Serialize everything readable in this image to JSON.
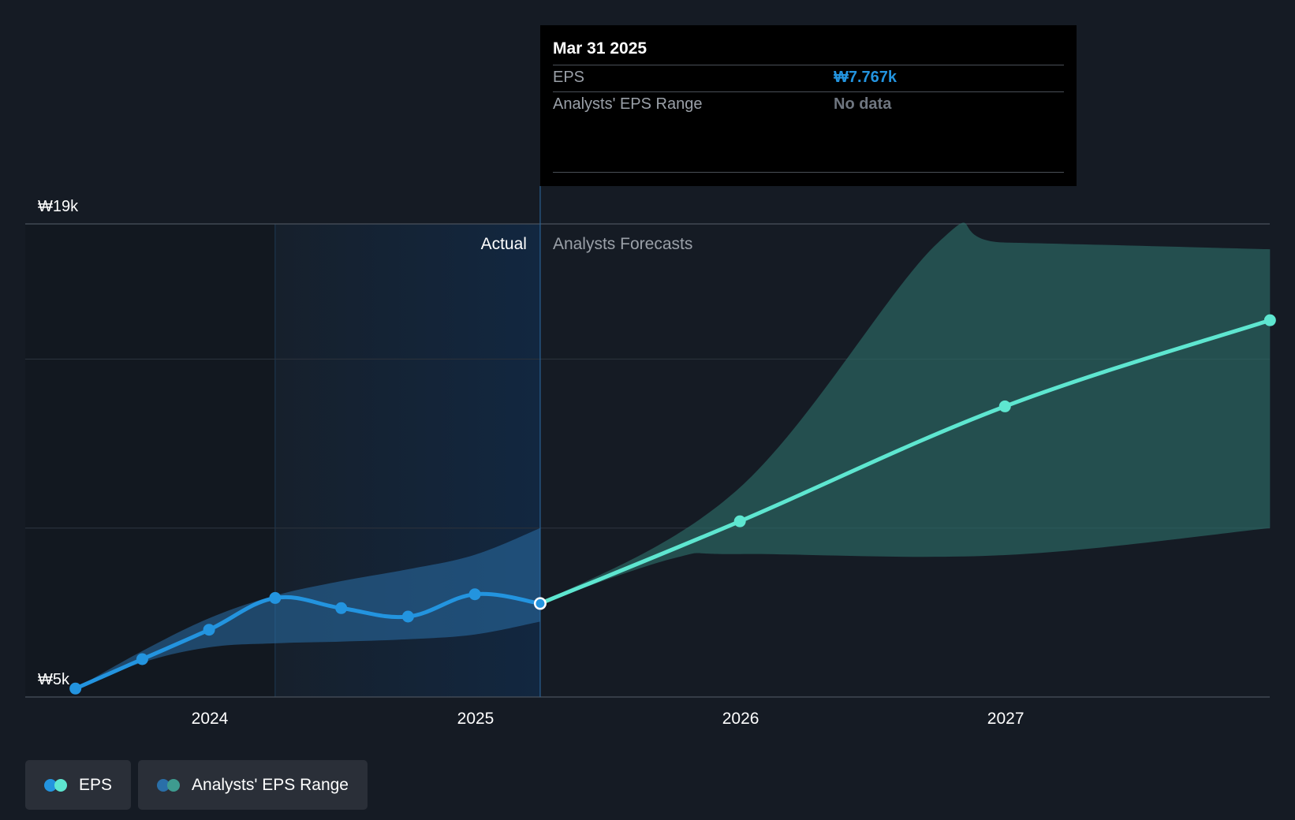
{
  "chart_data": {
    "type": "line",
    "y_axis": {
      "top_label": "₩19k",
      "bottom_label": "₩5k",
      "min": 5000,
      "max": 19000,
      "gridlines": [
        15000,
        10000
      ]
    },
    "x_axis": {
      "ticks": [
        "2024",
        "2025",
        "2026",
        "2027"
      ]
    },
    "regions": {
      "actual_label": "Actual",
      "forecast_label": "Analysts Forecasts"
    },
    "series": [
      {
        "name": "EPS",
        "kind": "actual",
        "color": "#2394df",
        "points": [
          {
            "x": "2023-06-30",
            "y": 5250
          },
          {
            "x": "2023-09-30",
            "y": 6120
          },
          {
            "x": "2023-12-31",
            "y": 6990
          },
          {
            "x": "2024-03-31",
            "y": 7930
          },
          {
            "x": "2024-06-30",
            "y": 7630
          },
          {
            "x": "2024-09-30",
            "y": 7380
          },
          {
            "x": "2024-12-31",
            "y": 8040
          },
          {
            "x": "2025-03-31",
            "y": 7767
          }
        ]
      },
      {
        "name": "EPS",
        "kind": "forecast",
        "color": "#5ee6d0",
        "points": [
          {
            "x": "2025-03-31",
            "y": 7767
          },
          {
            "x": "2025-12-31",
            "y": 10200
          },
          {
            "x": "2026-12-31",
            "y": 13600
          },
          {
            "x": "2027-12-31",
            "y": 16150
          }
        ]
      }
    ],
    "ranges": [
      {
        "name": "Analysts' EPS Range",
        "kind": "actual",
        "color": "#2a6fa8",
        "upper": [
          {
            "x": "2023-06-30",
            "y": 5250
          },
          {
            "x": "2023-09-30",
            "y": 6360
          },
          {
            "x": "2023-12-31",
            "y": 7330
          },
          {
            "x": "2024-03-31",
            "y": 8000
          },
          {
            "x": "2024-06-30",
            "y": 8430
          },
          {
            "x": "2024-09-30",
            "y": 8780
          },
          {
            "x": "2024-12-31",
            "y": 9210
          },
          {
            "x": "2025-03-31",
            "y": 10000
          }
        ],
        "lower": [
          {
            "x": "2023-06-30",
            "y": 5250
          },
          {
            "x": "2023-09-30",
            "y": 6020
          },
          {
            "x": "2023-12-31",
            "y": 6470
          },
          {
            "x": "2024-03-31",
            "y": 6590
          },
          {
            "x": "2024-06-30",
            "y": 6640
          },
          {
            "x": "2024-09-30",
            "y": 6710
          },
          {
            "x": "2024-12-31",
            "y": 6850
          },
          {
            "x": "2025-03-31",
            "y": 7230
          }
        ]
      },
      {
        "name": "Analysts' EPS Range",
        "kind": "forecast",
        "color": "#2d6f6a",
        "upper": [
          {
            "x": "2025-03-31",
            "y": 7767
          },
          {
            "x": "2025-12-31",
            "y": 11200
          },
          {
            "x": "2026-09-30",
            "y": 18450
          },
          {
            "x": "2026-12-31",
            "y": 18450
          },
          {
            "x": "2027-12-31",
            "y": 18250
          }
        ],
        "lower": [
          {
            "x": "2025-03-31",
            "y": 7767
          },
          {
            "x": "2025-09-30",
            "y": 9100
          },
          {
            "x": "2025-12-31",
            "y": 9230
          },
          {
            "x": "2026-12-31",
            "y": 9200
          },
          {
            "x": "2027-12-31",
            "y": 10000
          }
        ]
      }
    ],
    "highlight": {
      "x": "2025-03-31",
      "y": 7767
    }
  },
  "tooltip": {
    "date": "Mar 31 2025",
    "rows": [
      {
        "label": "EPS",
        "value": "₩7.767k",
        "value_color": "#2394df"
      },
      {
        "label": "Analysts' EPS Range",
        "value": "No data",
        "value_color": "#6f7680"
      }
    ]
  },
  "legend": {
    "items": [
      {
        "label": "EPS",
        "colors": [
          "#2394df",
          "#5ee6d0"
        ]
      },
      {
        "label": "Analysts' EPS Range",
        "colors": [
          "#2a6fa8",
          "#3e9b8f"
        ]
      }
    ]
  }
}
